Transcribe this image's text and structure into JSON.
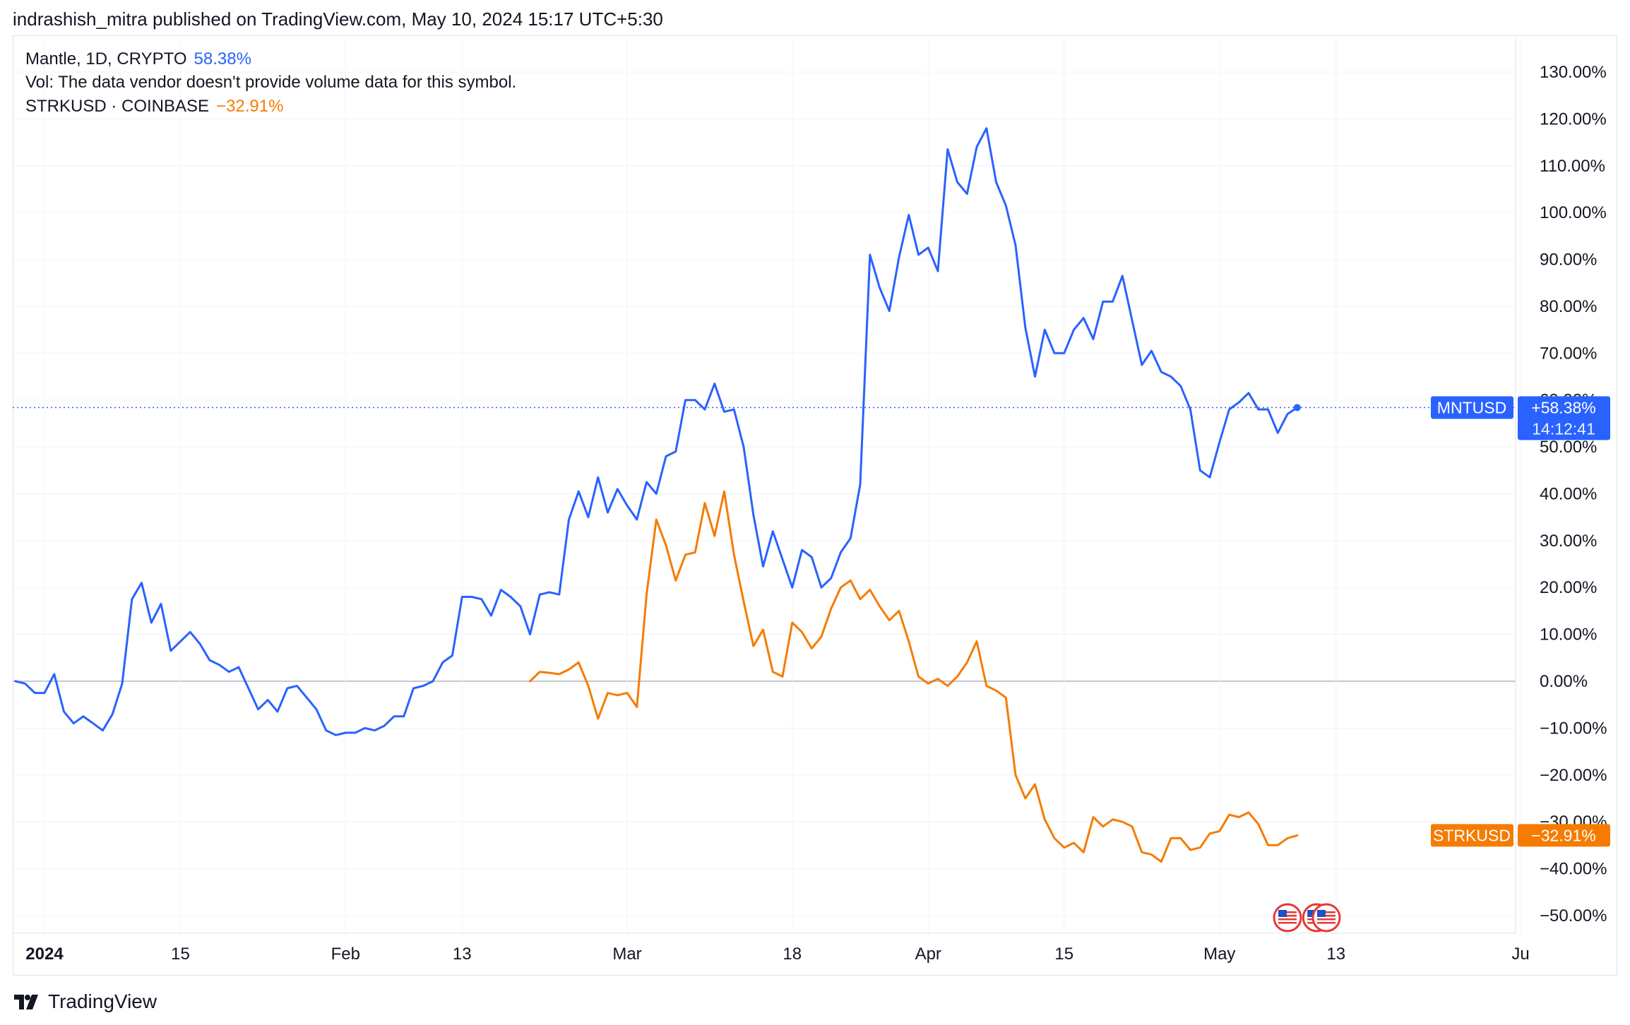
{
  "header": {
    "publish_note": "indrashish_mitra published on TradingView.com, May 10, 2024 15:17 UTC+5:30"
  },
  "legend": {
    "main_symbol": "Mantle, 1D, CRYPTO",
    "main_value": "58.38%",
    "volume_note": "Vol: The data vendor doesn't provide volume data for this symbol.",
    "compare_symbol": "STRKUSD · COINBASE",
    "compare_value": "−32.91%"
  },
  "footer": {
    "brand": "TradingView"
  },
  "colors": {
    "mntusd": "#2962ff",
    "strkusd": "#f57c00",
    "grid": "#f0f3fa",
    "zero_line": "#b2b5be"
  },
  "chart_data": {
    "type": "line",
    "y_unit": "percent change",
    "ylim": [
      -55,
      135
    ],
    "y_ticks": [
      130,
      120,
      110,
      100,
      90,
      80,
      70,
      60,
      50,
      40,
      30,
      20,
      10,
      0,
      -10,
      -20,
      -30,
      -40,
      -50
    ],
    "y_tick_labels": [
      "130.00%",
      "120.00%",
      "110.00%",
      "100.00%",
      "90.00%",
      "80.00%",
      "70.00%",
      "60.00%",
      "50.00%",
      "40.00%",
      "30.00%",
      "20.00%",
      "10.00%",
      "0.00%",
      "−10.00%",
      "−20.00%",
      "−30.00%",
      "−40.00%",
      "−50.00%"
    ],
    "x_range": [
      "2023-12-29",
      "2024-06-01"
    ],
    "x_ticks": [
      {
        "date": "2024-01-01",
        "label": "2024",
        "bold": true
      },
      {
        "date": "2024-01-15",
        "label": "15"
      },
      {
        "date": "2024-02-01",
        "label": "Feb"
      },
      {
        "date": "2024-02-13",
        "label": "13"
      },
      {
        "date": "2024-03-01",
        "label": "Mar"
      },
      {
        "date": "2024-03-18",
        "label": "18"
      },
      {
        "date": "2024-04-01",
        "label": "Apr"
      },
      {
        "date": "2024-04-15",
        "label": "15"
      },
      {
        "date": "2024-05-01",
        "label": "May"
      },
      {
        "date": "2024-05-13",
        "label": "13"
      },
      {
        "date": "2024-06-01",
        "label": "Ju"
      }
    ],
    "series": [
      {
        "name": "MNTUSD",
        "last_value_label": "+58.38%",
        "countdown": "14:12:41",
        "points": [
          [
            "2023-12-29",
            0
          ],
          [
            "2023-12-30",
            -0.5
          ],
          [
            "2023-12-31",
            -2.5
          ],
          [
            "2024-01-01",
            -2.5
          ],
          [
            "2024-01-02",
            1.5
          ],
          [
            "2024-01-03",
            -6.5
          ],
          [
            "2024-01-04",
            -9
          ],
          [
            "2024-01-05",
            -7.5
          ],
          [
            "2024-01-06",
            -9
          ],
          [
            "2024-01-07",
            -10.5
          ],
          [
            "2024-01-08",
            -7
          ],
          [
            "2024-01-09",
            -0.5
          ],
          [
            "2024-01-10",
            17.5
          ],
          [
            "2024-01-11",
            21
          ],
          [
            "2024-01-12",
            12.5
          ],
          [
            "2024-01-13",
            16.5
          ],
          [
            "2024-01-14",
            6.5
          ],
          [
            "2024-01-15",
            8.5
          ],
          [
            "2024-01-16",
            10.5
          ],
          [
            "2024-01-17",
            8
          ],
          [
            "2024-01-18",
            4.5
          ],
          [
            "2024-01-19",
            3.5
          ],
          [
            "2024-01-20",
            2
          ],
          [
            "2024-01-21",
            3
          ],
          [
            "2024-01-22",
            -1.5
          ],
          [
            "2024-01-23",
            -6
          ],
          [
            "2024-01-24",
            -4
          ],
          [
            "2024-01-25",
            -6.5
          ],
          [
            "2024-01-26",
            -1.5
          ],
          [
            "2024-01-27",
            -1
          ],
          [
            "2024-01-28",
            -3.5
          ],
          [
            "2024-01-29",
            -6
          ],
          [
            "2024-01-30",
            -10.5
          ],
          [
            "2024-01-31",
            -11.5
          ],
          [
            "2024-02-01",
            -11
          ],
          [
            "2024-02-02",
            -11
          ],
          [
            "2024-02-03",
            -10
          ],
          [
            "2024-02-04",
            -10.5
          ],
          [
            "2024-02-05",
            -9.5
          ],
          [
            "2024-02-06",
            -7.5
          ],
          [
            "2024-02-07",
            -7.5
          ],
          [
            "2024-02-08",
            -1.5
          ],
          [
            "2024-02-09",
            -1
          ],
          [
            "2024-02-10",
            0
          ],
          [
            "2024-02-11",
            4
          ],
          [
            "2024-02-12",
            5.5
          ],
          [
            "2024-02-13",
            18
          ],
          [
            "2024-02-14",
            18
          ],
          [
            "2024-02-15",
            17.5
          ],
          [
            "2024-02-16",
            14
          ],
          [
            "2024-02-17",
            19.5
          ],
          [
            "2024-02-18",
            18
          ],
          [
            "2024-02-19",
            16
          ],
          [
            "2024-02-20",
            10
          ],
          [
            "2024-02-21",
            18.5
          ],
          [
            "2024-02-22",
            19
          ],
          [
            "2024-02-23",
            18.5
          ],
          [
            "2024-02-24",
            34.5
          ],
          [
            "2024-02-25",
            40.5
          ],
          [
            "2024-02-26",
            35
          ],
          [
            "2024-02-27",
            43.5
          ],
          [
            "2024-02-28",
            36
          ],
          [
            "2024-02-29",
            41
          ],
          [
            "2024-03-01",
            37.5
          ],
          [
            "2024-03-02",
            34.5
          ],
          [
            "2024-03-03",
            42.5
          ],
          [
            "2024-03-04",
            40
          ],
          [
            "2024-03-05",
            48
          ],
          [
            "2024-03-06",
            49
          ],
          [
            "2024-03-07",
            60
          ],
          [
            "2024-03-08",
            60
          ],
          [
            "2024-03-09",
            58
          ],
          [
            "2024-03-10",
            63.5
          ],
          [
            "2024-03-11",
            57.5
          ],
          [
            "2024-03-12",
            58
          ],
          [
            "2024-03-13",
            50
          ],
          [
            "2024-03-14",
            35.5
          ],
          [
            "2024-03-15",
            24.5
          ],
          [
            "2024-03-16",
            32
          ],
          [
            "2024-03-17",
            26
          ],
          [
            "2024-03-18",
            20
          ],
          [
            "2024-03-19",
            28
          ],
          [
            "2024-03-20",
            26.5
          ],
          [
            "2024-03-21",
            20
          ],
          [
            "2024-03-22",
            22
          ],
          [
            "2024-03-23",
            27.5
          ],
          [
            "2024-03-24",
            30.5
          ],
          [
            "2024-03-25",
            42
          ],
          [
            "2024-03-26",
            91
          ],
          [
            "2024-03-27",
            84
          ],
          [
            "2024-03-28",
            79
          ],
          [
            "2024-03-29",
            90.5
          ],
          [
            "2024-03-30",
            99.5
          ],
          [
            "2024-03-31",
            91
          ],
          [
            "2024-04-01",
            92.5
          ],
          [
            "2024-04-02",
            87.5
          ],
          [
            "2024-04-03",
            113.5
          ],
          [
            "2024-04-04",
            106.5
          ],
          [
            "2024-04-05",
            104
          ],
          [
            "2024-04-06",
            114
          ],
          [
            "2024-04-07",
            118
          ],
          [
            "2024-04-08",
            106.5
          ],
          [
            "2024-04-09",
            101.5
          ],
          [
            "2024-04-10",
            93
          ],
          [
            "2024-04-11",
            75.5
          ],
          [
            "2024-04-12",
            65
          ],
          [
            "2024-04-13",
            75
          ],
          [
            "2024-04-14",
            70
          ],
          [
            "2024-04-15",
            70
          ],
          [
            "2024-04-16",
            75
          ],
          [
            "2024-04-17",
            77.5
          ],
          [
            "2024-04-18",
            73
          ],
          [
            "2024-04-19",
            81
          ],
          [
            "2024-04-20",
            81
          ],
          [
            "2024-04-21",
            86.5
          ],
          [
            "2024-04-22",
            77
          ],
          [
            "2024-04-23",
            67.5
          ],
          [
            "2024-04-24",
            70.5
          ],
          [
            "2024-04-25",
            66
          ],
          [
            "2024-04-26",
            65
          ],
          [
            "2024-04-27",
            63
          ],
          [
            "2024-04-28",
            58
          ],
          [
            "2024-04-29",
            45
          ],
          [
            "2024-04-30",
            43.5
          ],
          [
            "2024-05-01",
            51
          ],
          [
            "2024-05-02",
            58
          ],
          [
            "2024-05-03",
            59.5
          ],
          [
            "2024-05-04",
            61.5
          ],
          [
            "2024-05-05",
            58
          ],
          [
            "2024-05-06",
            58
          ],
          [
            "2024-05-07",
            53
          ],
          [
            "2024-05-08",
            57
          ],
          [
            "2024-05-09",
            58.4
          ]
        ]
      },
      {
        "name": "STRKUSD",
        "last_value_label": "−32.91%",
        "points": [
          [
            "2024-02-20",
            0
          ],
          [
            "2024-02-21",
            2
          ],
          [
            "2024-02-22",
            1.8
          ],
          [
            "2024-02-23",
            1.5
          ],
          [
            "2024-02-24",
            2.5
          ],
          [
            "2024-02-25",
            4
          ],
          [
            "2024-02-26",
            -1
          ],
          [
            "2024-02-27",
            -8
          ],
          [
            "2024-02-28",
            -2.5
          ],
          [
            "2024-02-29",
            -3
          ],
          [
            "2024-03-01",
            -2.5
          ],
          [
            "2024-03-02",
            -5.5
          ],
          [
            "2024-03-03",
            18.5
          ],
          [
            "2024-03-04",
            34.5
          ],
          [
            "2024-03-05",
            29
          ],
          [
            "2024-03-06",
            21.5
          ],
          [
            "2024-03-07",
            27
          ],
          [
            "2024-03-08",
            27.5
          ],
          [
            "2024-03-09",
            38
          ],
          [
            "2024-03-10",
            31
          ],
          [
            "2024-03-11",
            40.5
          ],
          [
            "2024-03-12",
            27
          ],
          [
            "2024-03-13",
            17
          ],
          [
            "2024-03-14",
            7.5
          ],
          [
            "2024-03-15",
            11
          ],
          [
            "2024-03-16",
            2
          ],
          [
            "2024-03-17",
            1
          ],
          [
            "2024-03-18",
            12.5
          ],
          [
            "2024-03-19",
            10.5
          ],
          [
            "2024-03-20",
            7
          ],
          [
            "2024-03-21",
            9.5
          ],
          [
            "2024-03-22",
            15.5
          ],
          [
            "2024-03-23",
            20
          ],
          [
            "2024-03-24",
            21.5
          ],
          [
            "2024-03-25",
            17.5
          ],
          [
            "2024-03-26",
            19.5
          ],
          [
            "2024-03-27",
            16
          ],
          [
            "2024-03-28",
            13
          ],
          [
            "2024-03-29",
            15
          ],
          [
            "2024-03-30",
            8.5
          ],
          [
            "2024-03-31",
            1
          ],
          [
            "2024-04-01",
            -0.5
          ],
          [
            "2024-04-02",
            0.5
          ],
          [
            "2024-04-03",
            -1
          ],
          [
            "2024-04-04",
            1
          ],
          [
            "2024-04-05",
            4
          ],
          [
            "2024-04-06",
            8.5
          ],
          [
            "2024-04-07",
            -1
          ],
          [
            "2024-04-08",
            -2
          ],
          [
            "2024-04-09",
            -3.5
          ],
          [
            "2024-04-10",
            -20
          ],
          [
            "2024-04-11",
            -25
          ],
          [
            "2024-04-12",
            -22
          ],
          [
            "2024-04-13",
            -29.5
          ],
          [
            "2024-04-14",
            -33.5
          ],
          [
            "2024-04-15",
            -35.5
          ],
          [
            "2024-04-16",
            -34.5
          ],
          [
            "2024-04-17",
            -36.5
          ],
          [
            "2024-04-18",
            -29
          ],
          [
            "2024-04-19",
            -31
          ],
          [
            "2024-04-20",
            -29.5
          ],
          [
            "2024-04-21",
            -30
          ],
          [
            "2024-04-22",
            -31
          ],
          [
            "2024-04-23",
            -36.5
          ],
          [
            "2024-04-24",
            -37
          ],
          [
            "2024-04-25",
            -38.5
          ],
          [
            "2024-04-26",
            -33.5
          ],
          [
            "2024-04-27",
            -33.5
          ],
          [
            "2024-04-28",
            -36
          ],
          [
            "2024-04-29",
            -35.5
          ],
          [
            "2024-04-30",
            -32.5
          ],
          [
            "2024-05-01",
            -32
          ],
          [
            "2024-05-02",
            -28.5
          ],
          [
            "2024-05-03",
            -29
          ],
          [
            "2024-05-04",
            -28
          ],
          [
            "2024-05-05",
            -30.5
          ],
          [
            "2024-05-06",
            -35
          ],
          [
            "2024-05-07",
            -35
          ],
          [
            "2024-05-08",
            -33.5
          ],
          [
            "2024-05-09",
            -32.9
          ]
        ]
      }
    ],
    "event_markers": [
      {
        "date": "2024-05-08",
        "icon": "us-flag-icon"
      },
      {
        "date": "2024-05-11",
        "icon": "us-flag-icon"
      },
      {
        "date": "2024-05-12",
        "icon": "us-flag-icon"
      }
    ]
  }
}
